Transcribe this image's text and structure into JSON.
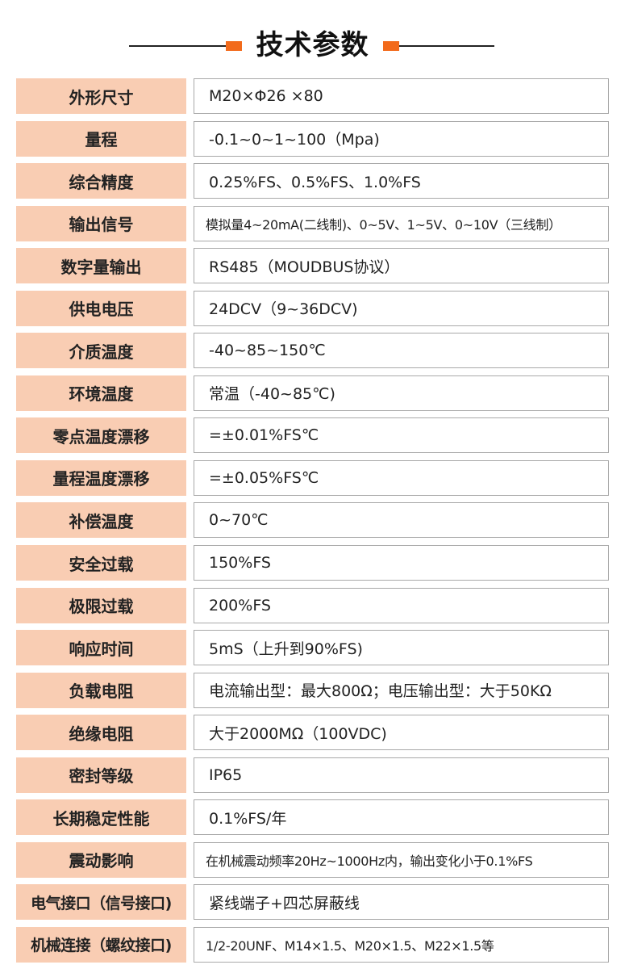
{
  "header": {
    "title": "技术参数",
    "accent_color": "#f26a1b"
  },
  "label_bg_color": "#f9cdb3",
  "specs": [
    {
      "label": "外形尺寸",
      "value": "M20×Φ26 ×80"
    },
    {
      "label": "量程",
      "value": "-0.1~0~1~100（Mpa)"
    },
    {
      "label": "综合精度",
      "value": "0.25%FS、0.5%FS、1.0%FS"
    },
    {
      "label": "输出信号",
      "value": "模拟量4~20mA(二线制)、0~5V、1~5V、0~10V（三线制）"
    },
    {
      "label": "数字量输出",
      "value": "RS485（MOUDBUS协议）"
    },
    {
      "label": "供电电压",
      "value": "24DCV（9~36DCV)"
    },
    {
      "label": "介质温度",
      "value": "-40~85~150℃"
    },
    {
      "label": "环境温度",
      "value": "常温（-40~85℃)"
    },
    {
      "label": "零点温度漂移",
      "value": "=±0.01%FS℃"
    },
    {
      "label": "量程温度漂移",
      "value": "=±0.05%FS℃"
    },
    {
      "label": "补偿温度",
      "value": "0~70℃"
    },
    {
      "label": "安全过载",
      "value": "150%FS"
    },
    {
      "label": "极限过载",
      "value": "200%FS"
    },
    {
      "label": "响应时间",
      "value": "5mS（上升到90%FS)"
    },
    {
      "label": "负载电阻",
      "value": "电流输出型：最大800Ω；电压输出型：大于50KΩ"
    },
    {
      "label": "绝缘电阻",
      "value": "大于2000MΩ（100VDC)"
    },
    {
      "label": "密封等级",
      "value": "IP65"
    },
    {
      "label": "长期稳定性能",
      "value": "0.1%FS/年"
    },
    {
      "label": "震动影响",
      "value": "在机械震动频率20Hz~1000Hz内，输出变化小于0.1%FS"
    },
    {
      "label": "电气接口（信号接口)",
      "value": "紧线端子+四芯屏蔽线"
    },
    {
      "label": "机械连接（螺纹接口)",
      "value": "1/2-20UNF、M14×1.5、M20×1.5、M22×1.5等"
    }
  ]
}
